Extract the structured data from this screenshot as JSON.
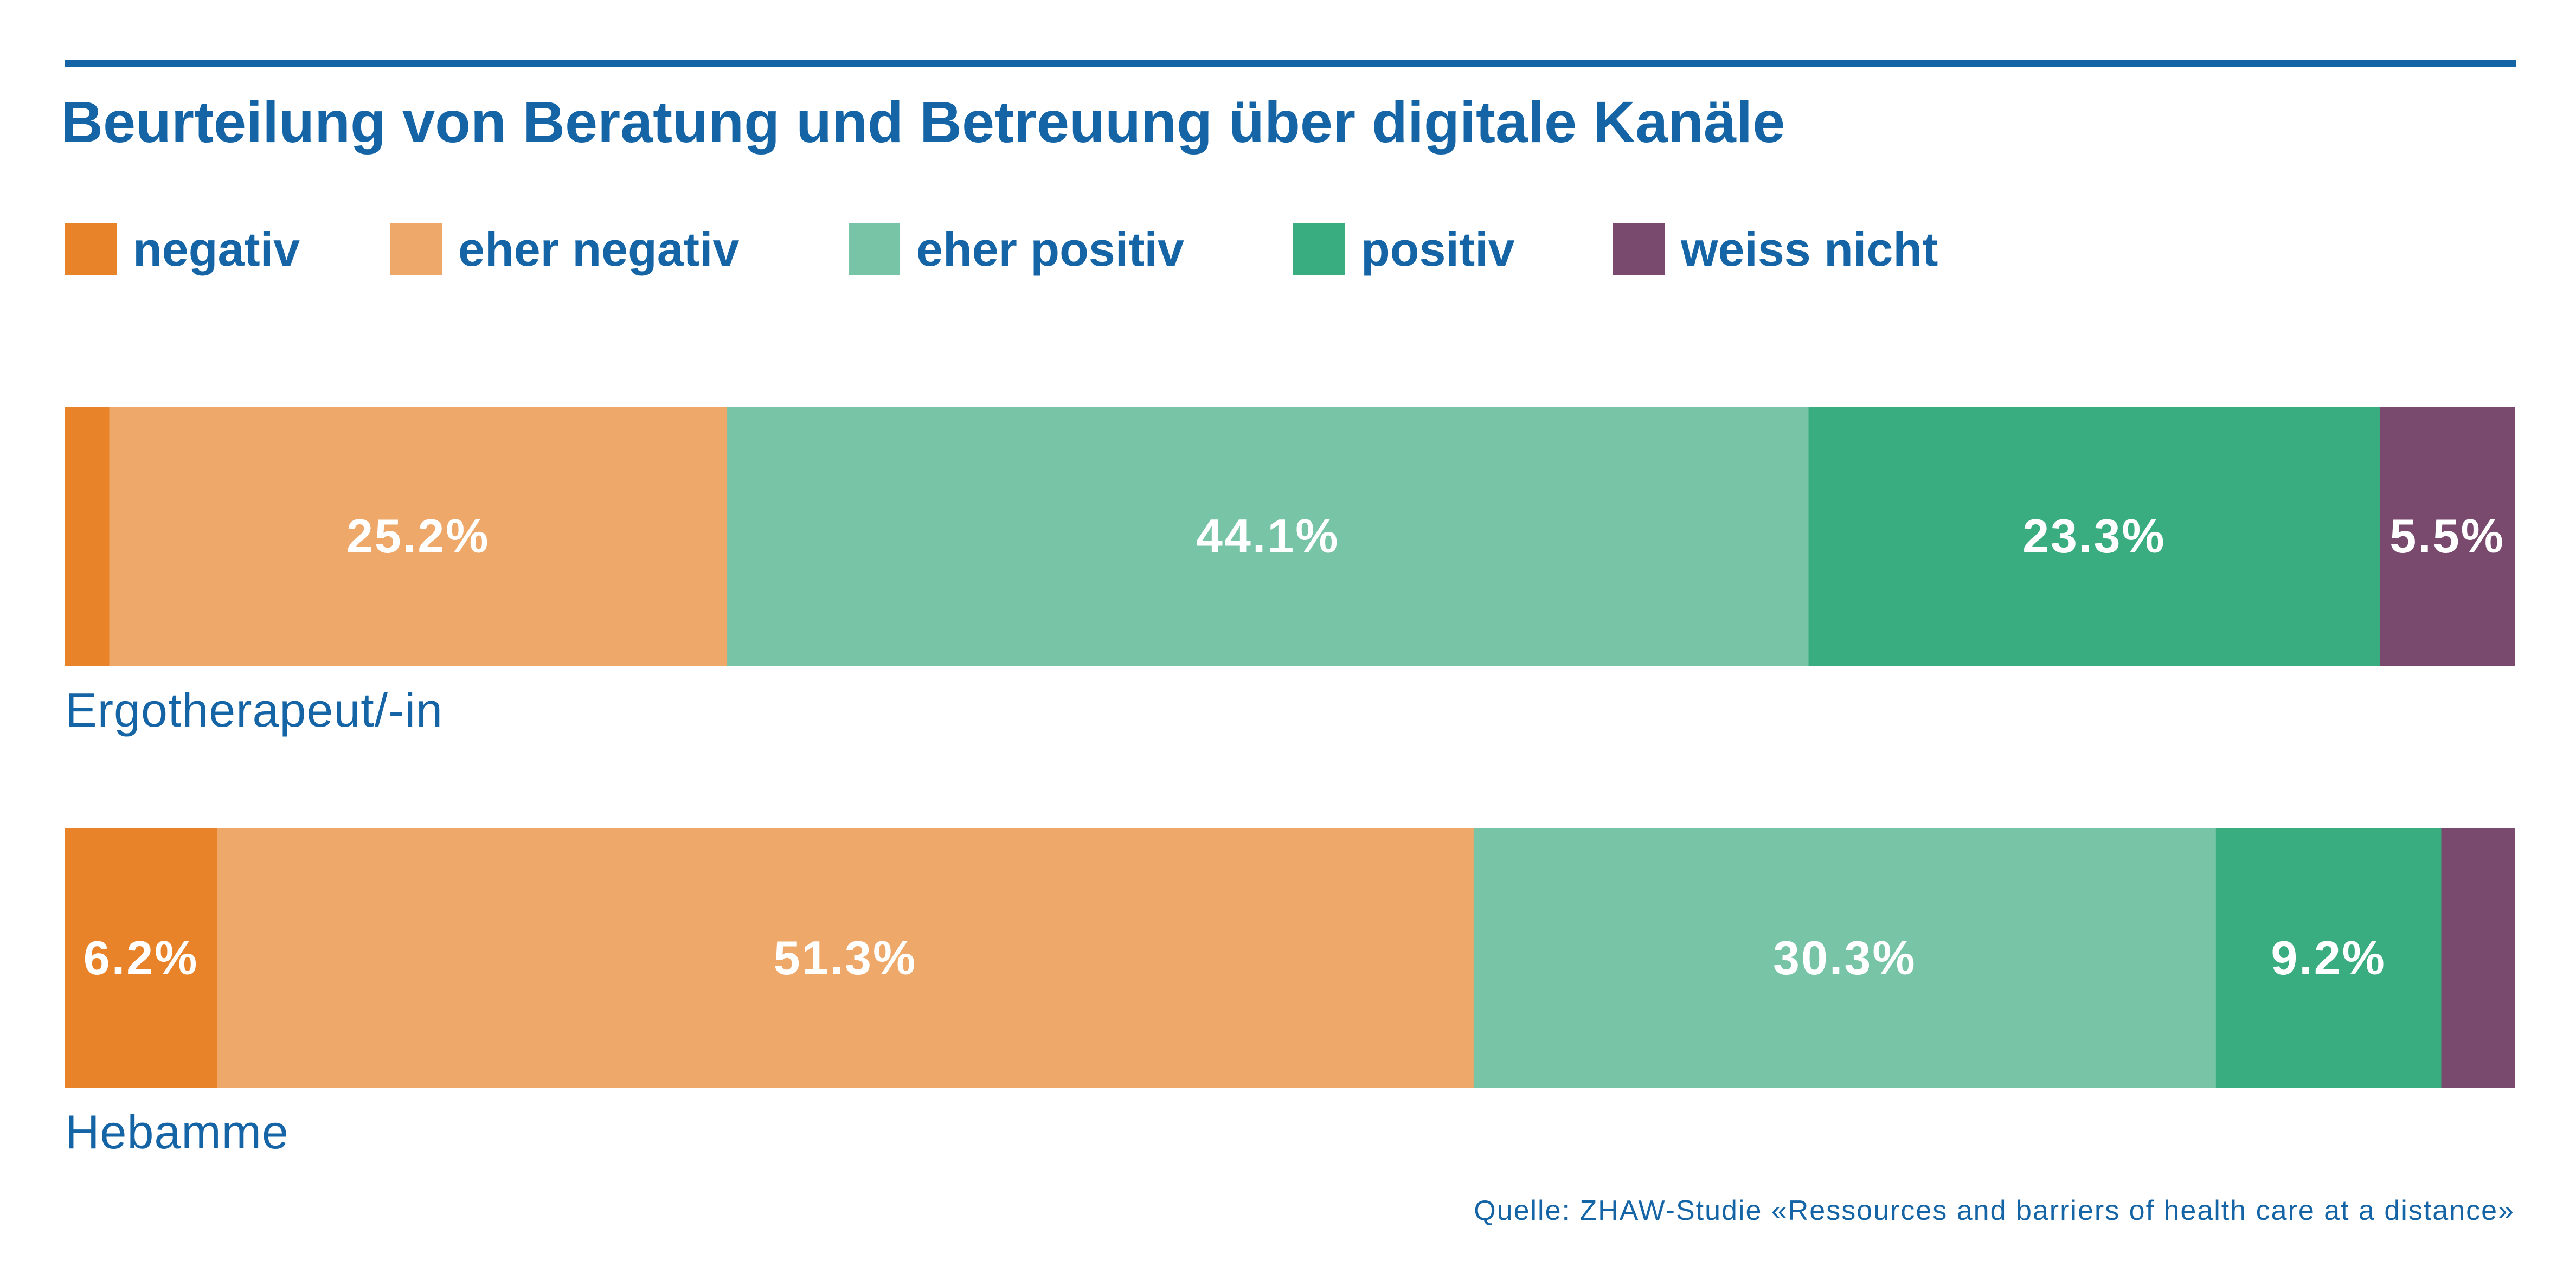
{
  "chart_data": {
    "type": "bar",
    "orientation": "horizontal",
    "stacked": true,
    "title": "Beurteilung von Beratung und Betreuung über digitale Kanäle",
    "categories": [
      "Ergotherapeut/-in",
      "Hebamme"
    ],
    "series": [
      {
        "name": "negativ",
        "color": "#E8832A",
        "values": [
          1.8,
          6.2
        ],
        "labels": [
          "",
          "6.2%"
        ]
      },
      {
        "name": "eher negativ",
        "color": "#EEA86A",
        "values": [
          25.2,
          51.3
        ],
        "labels": [
          "25.2%",
          "51.3%"
        ]
      },
      {
        "name": "eher positiv",
        "color": "#77C4A7",
        "values": [
          44.1,
          30.3
        ],
        "labels": [
          "44.1%",
          "30.3%"
        ]
      },
      {
        "name": "positiv",
        "color": "#3AAD80",
        "values": [
          23.3,
          9.2
        ],
        "labels": [
          "23.3%",
          "9.2%"
        ]
      },
      {
        "name": "weiss nicht",
        "color": "#7A4A6E",
        "values": [
          5.5,
          3.0
        ],
        "labels": [
          "5.5%",
          ""
        ]
      }
    ],
    "xlim": [
      0,
      100
    ],
    "legend_position": "top-left",
    "grid": false,
    "source": "Quelle: ZHAW-Studie «Ressources and barriers of health care at a distance»"
  },
  "colors": {
    "text": "#1565A6",
    "rule": "#1565A6",
    "label": "#FFFFFF"
  }
}
